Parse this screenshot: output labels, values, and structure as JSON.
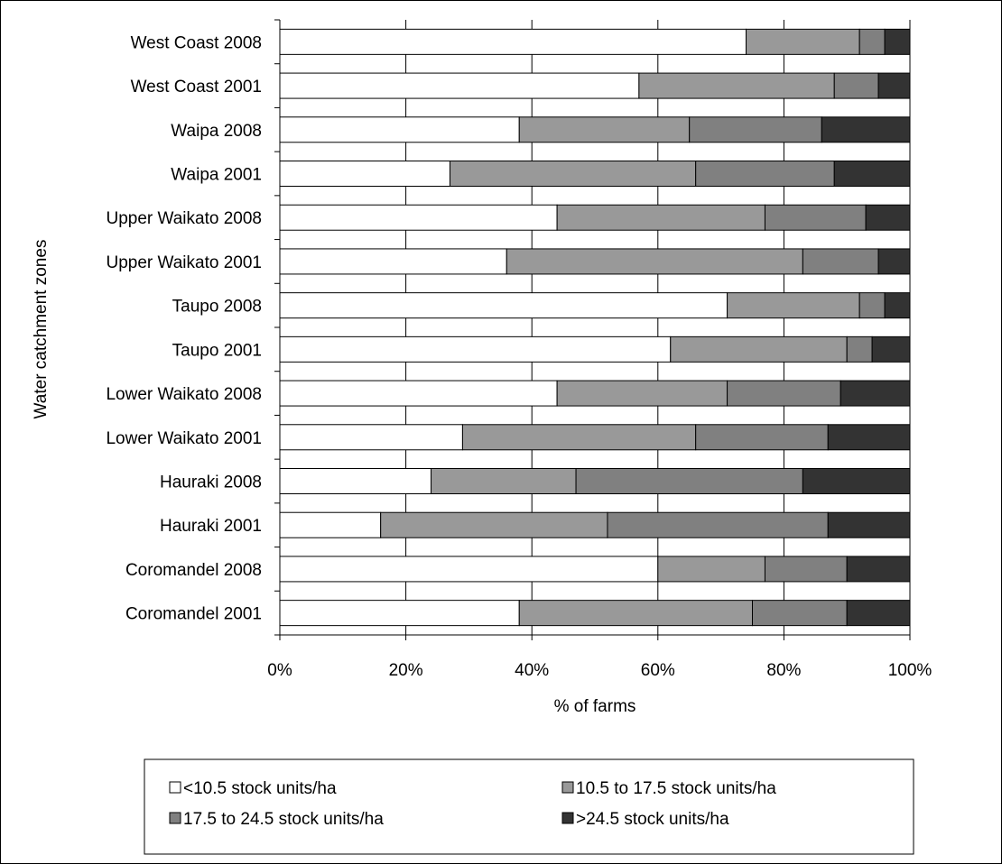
{
  "chart_data": {
    "type": "bar",
    "orientation": "horizontal",
    "stacked": "percent",
    "categories": [
      "West Coast 2008",
      "West Coast 2001",
      "Waipa 2008",
      "Waipa 2001",
      "Upper Waikato 2008",
      "Upper Waikato 2001",
      "Taupo 2008",
      "Taupo 2001",
      "Lower Waikato 2008",
      "Lower Waikato 2001",
      "Hauraki 2008",
      "Hauraki 2001",
      "Coromandel 2008",
      "Coromandel 2001"
    ],
    "series": [
      {
        "name": "<10.5 stock units/ha",
        "color": "#ffffff",
        "values": [
          74,
          57,
          38,
          27,
          44,
          36,
          71,
          62,
          44,
          29,
          24,
          16,
          60,
          38
        ]
      },
      {
        "name": "10.5 to 17.5 stock units/ha",
        "color": "#999999",
        "values": [
          18,
          31,
          27,
          39,
          33,
          47,
          21,
          28,
          27,
          37,
          23,
          36,
          17,
          37
        ]
      },
      {
        "name": "17.5 to 24.5 stock units/ha",
        "color": "#808080",
        "values": [
          4,
          7,
          21,
          22,
          16,
          12,
          4,
          4,
          18,
          21,
          36,
          35,
          13,
          15
        ]
      },
      {
        "name": ">24.5 stock units/ha",
        "color": "#333333",
        "values": [
          4,
          5,
          14,
          12,
          7,
          5,
          4,
          6,
          11,
          13,
          17,
          13,
          10,
          10
        ]
      }
    ],
    "xlim": [
      0,
      100
    ],
    "xticks": [
      "0%",
      "20%",
      "40%",
      "60%",
      "80%",
      "100%"
    ],
    "xlabel": "% of farms",
    "ylabel": "Water catchment zones",
    "title": "",
    "grid": "vertical",
    "legend_position": "bottom"
  }
}
